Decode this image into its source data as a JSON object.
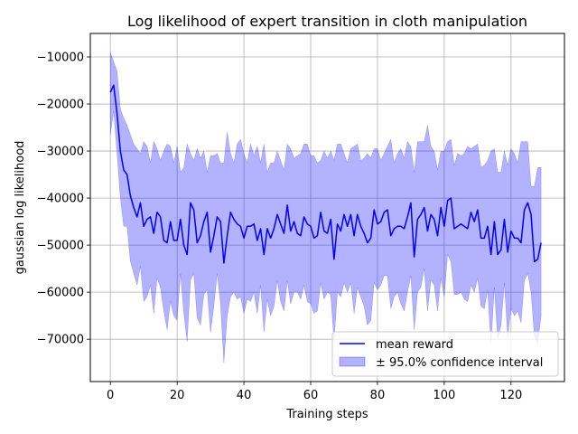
{
  "chart_data": {
    "type": "line",
    "title": "Log likelihood of expert transition in cloth manipulation",
    "xlabel": "Training steps",
    "ylabel": "gaussian log likelihood",
    "xlim": [
      -6,
      136
    ],
    "ylim": [
      -79000,
      -5000
    ],
    "xticks": [
      0,
      20,
      40,
      60,
      80,
      100,
      120
    ],
    "yticks": [
      -70000,
      -60000,
      -50000,
      -40000,
      -30000,
      -20000,
      -10000
    ],
    "grid": true,
    "legend_position": "lower-right",
    "series": [
      {
        "name": "mean reward",
        "color": "#0000ff",
        "x": [
          0,
          1,
          2,
          3,
          4,
          5,
          6,
          7,
          8,
          9,
          10,
          11,
          12,
          13,
          14,
          15,
          16,
          17,
          18,
          19,
          20,
          21,
          22,
          23,
          24,
          25,
          26,
          27,
          28,
          29,
          30,
          31,
          32,
          33,
          34,
          35,
          36,
          37,
          38,
          39,
          40,
          41,
          42,
          43,
          44,
          45,
          46,
          47,
          48,
          49,
          50,
          51,
          52,
          53,
          54,
          55,
          56,
          57,
          58,
          59,
          60,
          61,
          62,
          63,
          64,
          65,
          66,
          67,
          68,
          69,
          70,
          71,
          72,
          73,
          74,
          75,
          76,
          77,
          78,
          79,
          80,
          81,
          82,
          83,
          84,
          85,
          86,
          87,
          88,
          89,
          90,
          91,
          92,
          93,
          94,
          95,
          96,
          97,
          98,
          99,
          100,
          101,
          102,
          103,
          104,
          105,
          106,
          107,
          108,
          109,
          110,
          111,
          112,
          113,
          114,
          115,
          116,
          117,
          118,
          119,
          120,
          121,
          122,
          123,
          124,
          125,
          126,
          127,
          128,
          129
        ],
        "values": [
          -17500,
          -16000,
          -22000,
          -30000,
          -34000,
          -35000,
          -39500,
          -42000,
          -44000,
          -41000,
          -46000,
          -44500,
          -44000,
          -47500,
          -43000,
          -44000,
          -49000,
          -49500,
          -45000,
          -49000,
          -49000,
          -44500,
          -50000,
          -52000,
          -41000,
          -42500,
          -49500,
          -48000,
          -45000,
          -43000,
          -51500,
          -48000,
          -44000,
          -45000,
          -53800,
          -48000,
          -43000,
          -44500,
          -45500,
          -46000,
          -48500,
          -46000,
          -46000,
          -45500,
          -49000,
          -46500,
          -52000,
          -46500,
          -48500,
          -46500,
          -43500,
          -45500,
          -47500,
          -41500,
          -47000,
          -45000,
          -47500,
          -48000,
          -44000,
          -45500,
          -46000,
          -48500,
          -48000,
          -43000,
          -47000,
          -47500,
          -44500,
          -53000,
          -45500,
          -47000,
          -43500,
          -46000,
          -43500,
          -48000,
          -43500,
          -46000,
          -47500,
          -49500,
          -48500,
          -42500,
          -45500,
          -45000,
          -43000,
          -42500,
          -48000,
          -46500,
          -46000,
          -46000,
          -46500,
          -44000,
          -41000,
          -52500,
          -44500,
          -43500,
          -42000,
          -47000,
          -43500,
          -44500,
          -48000,
          -42000,
          -46000,
          -40500,
          -40000,
          -46500,
          -46000,
          -45500,
          -46000,
          -46500,
          -43000,
          -45000,
          -42500,
          -48500,
          -48500,
          -46000,
          -52000,
          -45000,
          -52000,
          -51000,
          -44500,
          -51500,
          -47000,
          -48500,
          -48500,
          -49500,
          -42500,
          -41000,
          -43500,
          -53500,
          -53000,
          -49500
        ]
      },
      {
        "name": "± 95.0% confidence interval",
        "color": "#0000ff",
        "fill_opacity": 0.3,
        "x": [
          0,
          1,
          2,
          3,
          4,
          5,
          6,
          7,
          8,
          9,
          10,
          11,
          12,
          13,
          14,
          15,
          16,
          17,
          18,
          19,
          20,
          21,
          22,
          23,
          24,
          25,
          26,
          27,
          28,
          29,
          30,
          31,
          32,
          33,
          34,
          35,
          36,
          37,
          38,
          39,
          40,
          41,
          42,
          43,
          44,
          45,
          46,
          47,
          48,
          49,
          50,
          51,
          52,
          53,
          54,
          55,
          56,
          57,
          58,
          59,
          60,
          61,
          62,
          63,
          64,
          65,
          66,
          67,
          68,
          69,
          70,
          71,
          72,
          73,
          74,
          75,
          76,
          77,
          78,
          79,
          80,
          81,
          82,
          83,
          84,
          85,
          86,
          87,
          88,
          89,
          90,
          91,
          92,
          93,
          94,
          95,
          96,
          97,
          98,
          99,
          100,
          101,
          102,
          103,
          104,
          105,
          106,
          107,
          108,
          109,
          110,
          111,
          112,
          113,
          114,
          115,
          116,
          117,
          118,
          119,
          120,
          121,
          122,
          123,
          124,
          125,
          126,
          127,
          128,
          129
        ],
        "upper": [
          -9000,
          -11000,
          -13000,
          -21000,
          -23000,
          -24500,
          -26500,
          -28500,
          -29500,
          -30500,
          -28000,
          -29000,
          -32500,
          -28000,
          -29500,
          -32000,
          -30000,
          -28500,
          -29000,
          -32500,
          -29000,
          -34500,
          -33500,
          -28500,
          -30500,
          -32000,
          -29500,
          -31500,
          -30000,
          -34500,
          -31000,
          -31000,
          -30500,
          -32500,
          -32500,
          -26000,
          -30500,
          -32500,
          -28500,
          -27500,
          -30500,
          -32500,
          -28500,
          -31000,
          -29000,
          -32500,
          -28500,
          -34500,
          -32500,
          -32500,
          -30000,
          -32000,
          -34000,
          -28500,
          -29500,
          -31500,
          -31000,
          -30500,
          -28500,
          -28500,
          -31000,
          -31000,
          -32500,
          -32000,
          -30000,
          -31500,
          -30000,
          -32000,
          -28500,
          -28500,
          -30500,
          -32500,
          -29500,
          -29000,
          -28500,
          -32000,
          -31500,
          -30500,
          -31500,
          -29500,
          -29500,
          -32000,
          -30500,
          -29000,
          -27500,
          -32500,
          -30500,
          -29500,
          -31500,
          -28000,
          -29000,
          -34500,
          -28000,
          -28000,
          -28000,
          -24500,
          -29000,
          -30000,
          -34000,
          -30000,
          -30000,
          -28000,
          -27500,
          -33000,
          -30500,
          -31000,
          -30500,
          -29000,
          -29500,
          -29000,
          -28500,
          -33500,
          -33000,
          -32000,
          -30000,
          -29500,
          -34500,
          -34500,
          -30000,
          -33000,
          -29500,
          -30500,
          -32500,
          -28000,
          -28000,
          -28000,
          -37500,
          -37500,
          -33500,
          -33500
        ],
        "lower": [
          -26500,
          -21500,
          -30500,
          -40000,
          -46000,
          -46000,
          -53500,
          -56000,
          -58500,
          -54500,
          -62000,
          -61000,
          -58500,
          -64500,
          -57000,
          -59000,
          -64000,
          -68000,
          -62000,
          -65000,
          -66000,
          -56000,
          -64500,
          -70500,
          -57500,
          -56000,
          -65500,
          -67000,
          -60500,
          -59500,
          -68500,
          -63000,
          -56000,
          -62500,
          -75000,
          -65000,
          -61000,
          -60000,
          -61500,
          -61000,
          -64500,
          -61500,
          -62000,
          -60000,
          -64500,
          -58500,
          -68500,
          -61500,
          -65000,
          -63000,
          -57500,
          -62000,
          -64000,
          -57500,
          -62500,
          -60000,
          -60000,
          -61500,
          -58500,
          -62000,
          -62500,
          -64500,
          -64000,
          -58000,
          -61500,
          -60000,
          -60500,
          -70500,
          -60000,
          -61000,
          -58000,
          -60000,
          -58000,
          -64500,
          -59000,
          -61000,
          -63000,
          -67000,
          -66000,
          -58000,
          -59500,
          -58500,
          -56500,
          -56500,
          -63500,
          -61000,
          -60000,
          -62500,
          -64000,
          -60000,
          -56500,
          -68000,
          -60000,
          -59000,
          -55000,
          -64000,
          -57500,
          -58500,
          -64000,
          -57000,
          -61000,
          -52000,
          -53500,
          -60500,
          -60500,
          -60000,
          -61500,
          -62000,
          -58500,
          -60000,
          -57000,
          -63000,
          -63500,
          -59500,
          -71000,
          -59000,
          -70000,
          -67000,
          -58000,
          -69500,
          -63500,
          -65000,
          -64000,
          -66500,
          -57500,
          -56000,
          -60000,
          -69500,
          -71000,
          -65000
        ]
      }
    ]
  }
}
